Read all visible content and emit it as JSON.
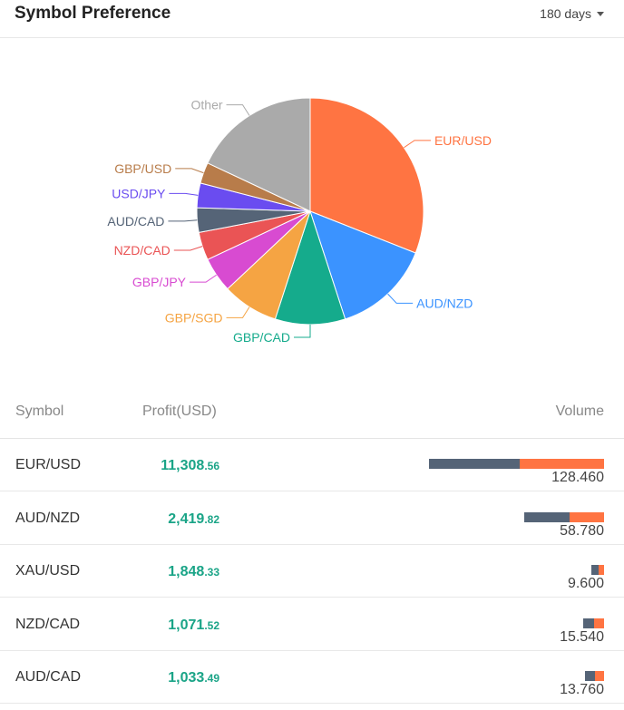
{
  "header": {
    "title": "Symbol Preference",
    "period": "180 days"
  },
  "chart_data": {
    "type": "pie",
    "slices": [
      {
        "label": "EUR/USD",
        "value": 31.0,
        "color": "#ff7442"
      },
      {
        "label": "AUD/NZD",
        "value": 14.0,
        "color": "#3b93ff"
      },
      {
        "label": "GBP/CAD",
        "value": 10.0,
        "color": "#15ab8c"
      },
      {
        "label": "GBP/SGD",
        "value": 8.0,
        "color": "#f5a443"
      },
      {
        "label": "GBP/JPY",
        "value": 5.0,
        "color": "#d84bd1"
      },
      {
        "label": "NZD/CAD",
        "value": 4.0,
        "color": "#ea5455"
      },
      {
        "label": "AUD/CAD",
        "value": 3.5,
        "color": "#556477"
      },
      {
        "label": "USD/JPY",
        "value": 3.5,
        "color": "#6a4cf0"
      },
      {
        "label": "GBP/USD",
        "value": 3.0,
        "color": "#b87c4a"
      },
      {
        "label": "Other",
        "value": 18.0,
        "color": "#aaaaaa"
      }
    ]
  },
  "table": {
    "headers": {
      "symbol": "Symbol",
      "profit": "Profit(USD)",
      "volume": "Volume"
    },
    "rows": [
      {
        "symbol": "EUR/USD",
        "profit_int": "11,308",
        "profit_dec": ".56",
        "volume": "128.460",
        "buy_ratio": 0.52
      },
      {
        "symbol": "AUD/NZD",
        "profit_int": "2,419",
        "profit_dec": ".82",
        "volume": "58.780",
        "buy_ratio": 0.57
      },
      {
        "symbol": "XAU/USD",
        "profit_int": "1,848",
        "profit_dec": ".33",
        "volume": "9.600",
        "buy_ratio": 0.6
      },
      {
        "symbol": "NZD/CAD",
        "profit_int": "1,071",
        "profit_dec": ".52",
        "volume": "15.540",
        "buy_ratio": 0.55
      },
      {
        "symbol": "AUD/CAD",
        "profit_int": "1,033",
        "profit_dec": ".49",
        "volume": "13.760",
        "buy_ratio": 0.5
      }
    ]
  }
}
